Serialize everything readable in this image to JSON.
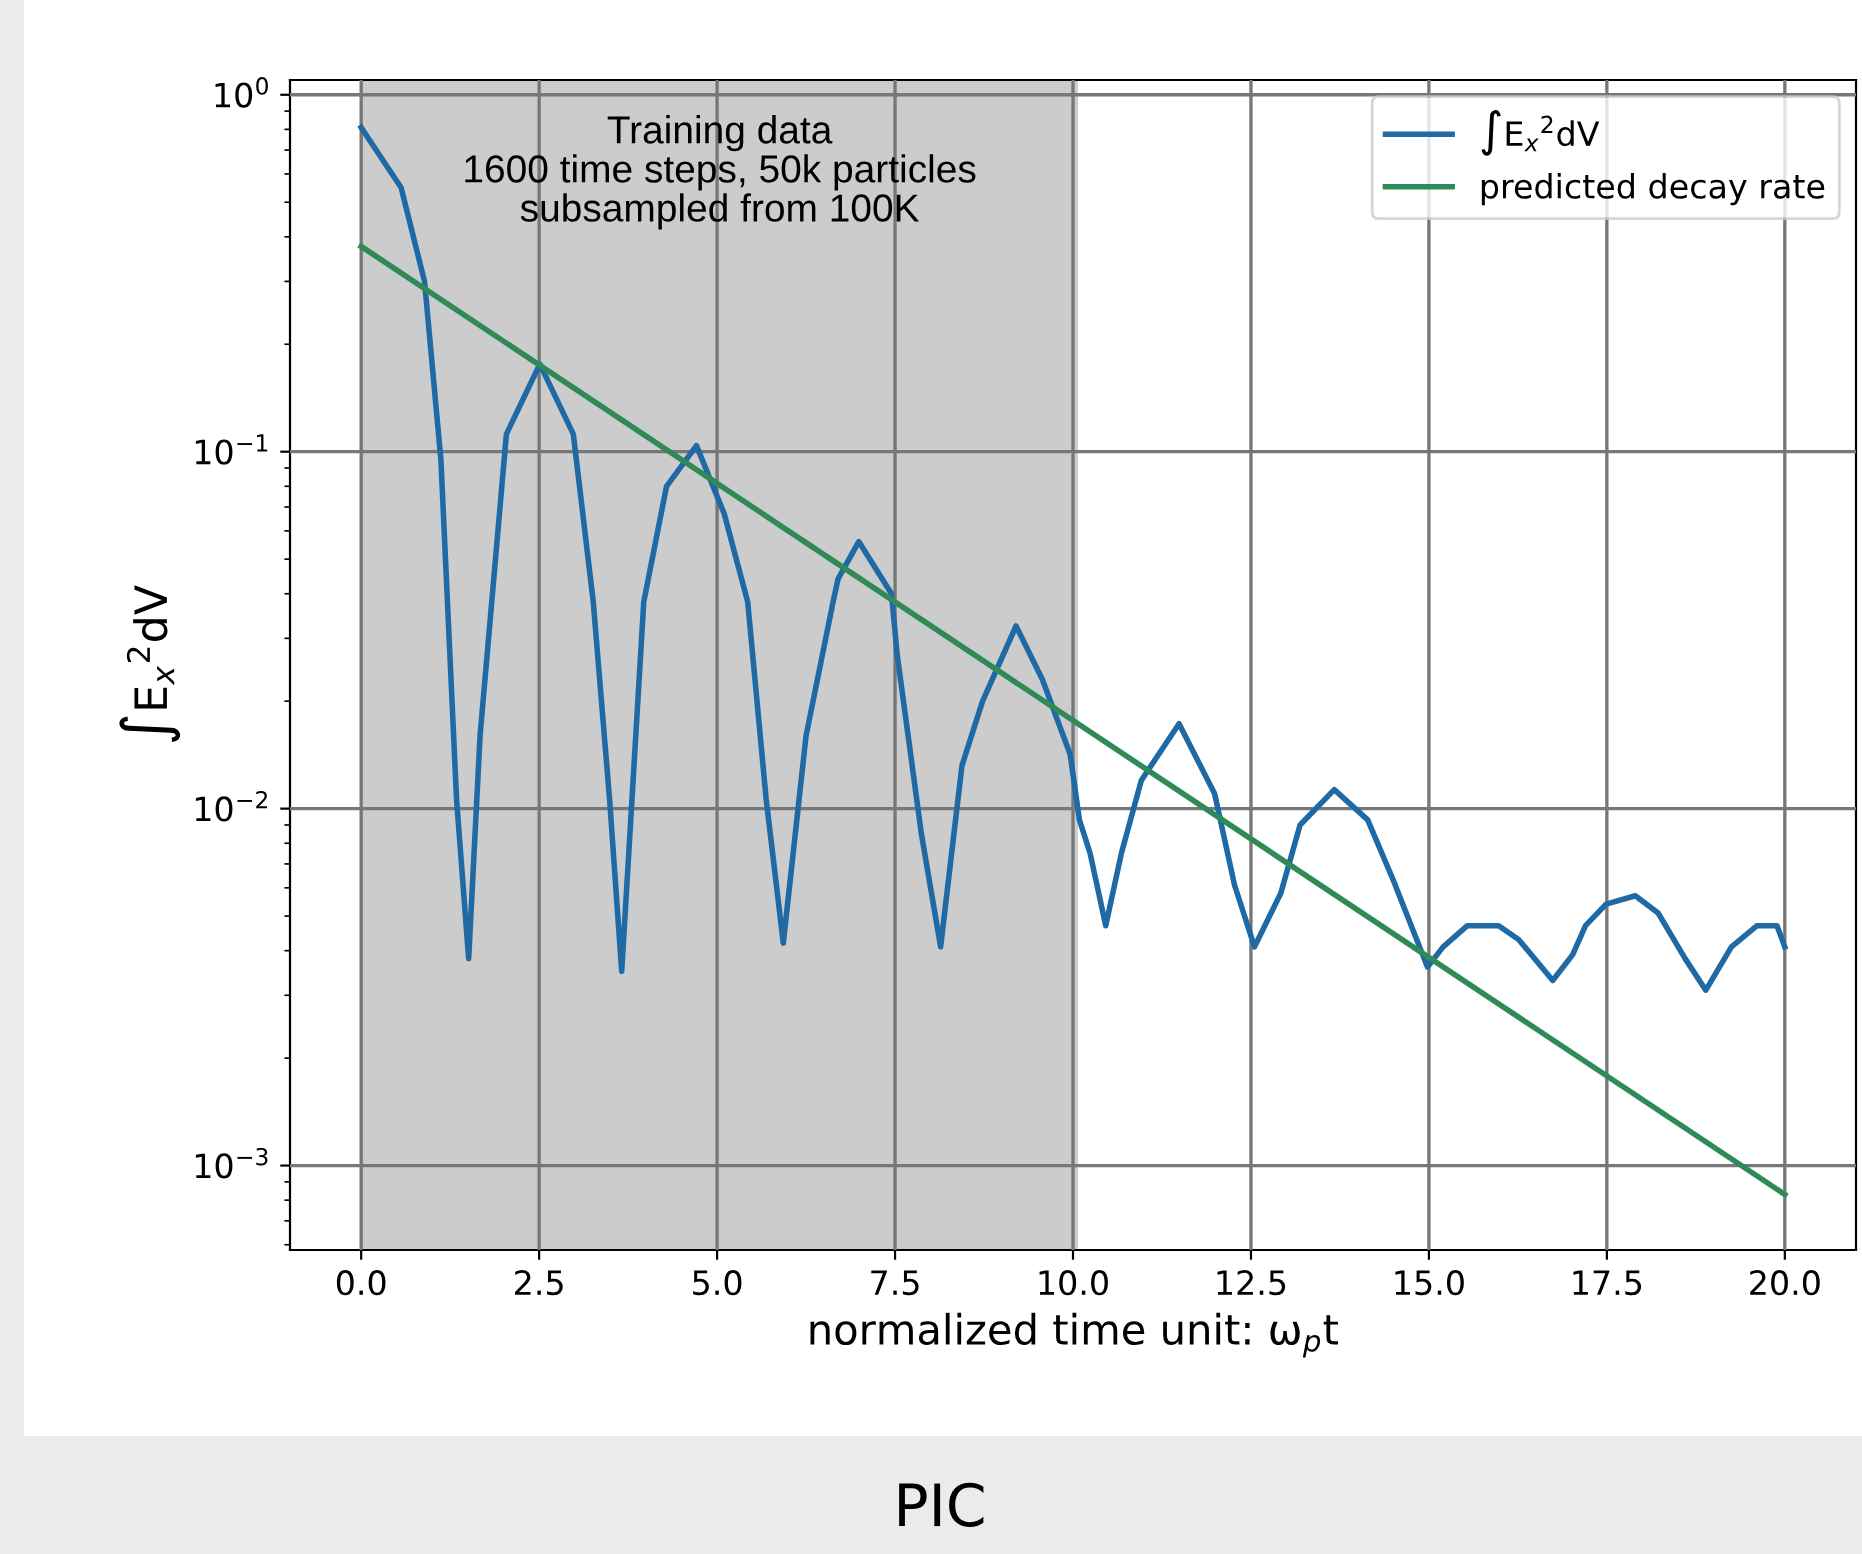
{
  "chart_data": {
    "type": "line",
    "xlabel": "normalized time unit: ω$_{p}$t",
    "ylabel": "∫E$_{x}$$^{2}$dV",
    "log": "y",
    "xlim": [
      -1,
      21
    ],
    "ylim": [
      0.00058,
      1.1
    ],
    "xticks": [
      {
        "value": 0,
        "label": "0.0"
      },
      {
        "value": 2.5,
        "label": "2.5"
      },
      {
        "value": 5,
        "label": "5.0"
      },
      {
        "value": 7.5,
        "label": "7.5"
      },
      {
        "value": 10,
        "label": "10.0"
      },
      {
        "value": 12.5,
        "label": "12.5"
      },
      {
        "value": 15,
        "label": "15.0"
      },
      {
        "value": 17.5,
        "label": "17.5"
      },
      {
        "value": 20,
        "label": "20.0"
      }
    ],
    "yticks": [
      {
        "value": 0.001,
        "label": "10$^{−3}$"
      },
      {
        "value": 0.01,
        "label": "10$^{−2}$"
      },
      {
        "value": 0.1,
        "label": "10$^{−1}$"
      },
      {
        "value": 1,
        "label": "10$^{0}$"
      }
    ],
    "grid": true,
    "legend": "top right",
    "bands": [
      {
        "axis": "x",
        "from": 0,
        "to": 10.07,
        "label": "Training data\n1600 time steps, 50k particles\nsubsampled from 100K",
        "color": "#cccccc"
      }
    ],
    "annotations": [
      "PIC"
    ],
    "series": [
      {
        "name": "∫E$_{x}$$^{2}$dV",
        "color": "#1f6aa5",
        "x": [
          0,
          0.56,
          0.89,
          1.12,
          1.34,
          1.51,
          1.67,
          2.04,
          2.51,
          2.98,
          3.26,
          3.49,
          3.66,
          3.97,
          4.29,
          4.71,
          5.1,
          5.43,
          5.69,
          5.93,
          6.25,
          6.63,
          6.7,
          6.99,
          7.45,
          7.53,
          7.87,
          8.14,
          8.44,
          8.73,
          9.2,
          9.57,
          9.96,
          10.09,
          10.24,
          10.46,
          10.68,
          10.96,
          11.49,
          11.99,
          12.27,
          12.55,
          12.92,
          13.19,
          13.67,
          14.14,
          14.5,
          14.98,
          15.2,
          15.54,
          15.98,
          16.26,
          16.74,
          17.02,
          17.2,
          17.49,
          17.9,
          18.22,
          18.6,
          18.89,
          19.25,
          19.61,
          19.89,
          20
        ],
        "values": [
          0.81,
          0.55,
          0.3,
          0.095,
          0.0106,
          0.0038,
          0.016,
          0.112,
          0.176,
          0.112,
          0.038,
          0.0106,
          0.0035,
          0.038,
          0.08,
          0.104,
          0.067,
          0.038,
          0.0106,
          0.0042,
          0.016,
          0.038,
          0.044,
          0.056,
          0.04,
          0.027,
          0.0085,
          0.0041,
          0.0132,
          0.02,
          0.0325,
          0.023,
          0.0142,
          0.0093,
          0.0075,
          0.0047,
          0.0075,
          0.012,
          0.0173,
          0.011,
          0.0061,
          0.0041,
          0.0058,
          0.009,
          0.0113,
          0.0093,
          0.0063,
          0.0036,
          0.0041,
          0.0047,
          0.0047,
          0.0043,
          0.0033,
          0.0039,
          0.0047,
          0.0054,
          0.0057,
          0.0051,
          0.0038,
          0.0031,
          0.0041,
          0.0047,
          0.0047,
          0.0041
        ]
      },
      {
        "name": "predicted decay rate",
        "color": "#2e8b57",
        "x": [
          0,
          20
        ],
        "values": [
          0.376,
          0.00083
        ]
      }
    ]
  }
}
